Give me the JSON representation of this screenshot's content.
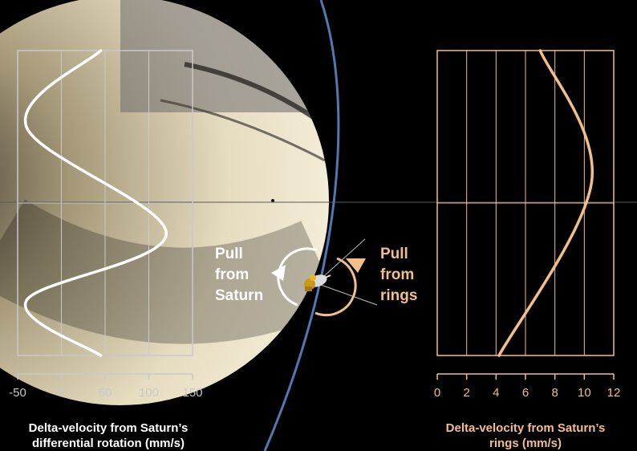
{
  "colors": {
    "background": "#000000",
    "left_panel": "#c9c9c9",
    "right_panel": "#f2be8c",
    "orbit": "#4f79b0",
    "saturn_light": "#e8dcc0",
    "saturn_dark": "#1a1712"
  },
  "annotations": {
    "pull_saturn": [
      "Pull",
      "from",
      "Saturn"
    ],
    "pull_rings": [
      "Pull",
      "from",
      "rings"
    ]
  },
  "chart_data": [
    {
      "type": "line",
      "xlabel": [
        "Delta-velocity from Saturn’s",
        "differential rotation (mm/s)"
      ],
      "xlim": [
        -50,
        150
      ],
      "xticks": [
        -50,
        0,
        50,
        100,
        150
      ],
      "grid": true,
      "series": [
        {
          "color": "#ffffff",
          "points": [
            [
              45,
              1.0
            ],
            [
              -40,
              0.75
            ],
            [
              120,
              0.4
            ],
            [
              -40,
              0.18
            ],
            [
              45,
              0.0
            ]
          ]
        }
      ]
    },
    {
      "type": "line",
      "xlabel": [
        "Delta-velocity from Saturn’s",
        "rings (mm/s)"
      ],
      "xlim": [
        0,
        12
      ],
      "xticks": [
        0,
        2,
        4,
        6,
        8,
        10,
        12
      ],
      "grid": true,
      "series": [
        {
          "color": "#f2be8c",
          "points": [
            [
              4.2,
              0.0
            ],
            [
              10.5,
              0.57
            ],
            [
              7.0,
              1.0
            ]
          ]
        }
      ]
    }
  ]
}
